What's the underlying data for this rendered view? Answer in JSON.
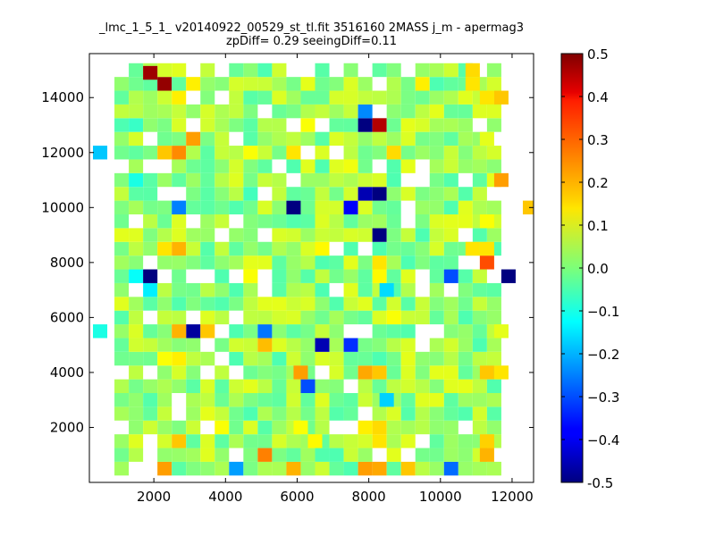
{
  "chart_data": {
    "type": "heatmap",
    "title": "_lmc_1_5_1_ v20140922_00529_st_tl.fit 3516160 2MASS j_m - apermag3",
    "subtitle": "zpDiff= 0.29 seeingDiff=0.11",
    "xlabel": "",
    "ylabel": "",
    "xlim": [
      200,
      12600
    ],
    "ylim": [
      0,
      15600
    ],
    "x_ticks": [
      2000,
      4000,
      6000,
      8000,
      10000,
      12000
    ],
    "y_ticks": [
      2000,
      4000,
      6000,
      8000,
      10000,
      12000,
      14000
    ],
    "colorbar": {
      "colormap": "jet",
      "range": [
        -0.5,
        0.5
      ],
      "ticks": [
        "-0.5",
        "−0.4",
        "−0.3",
        "−0.2",
        "−0.1",
        "0.0",
        "0.1",
        "0.2",
        "0.3",
        "0.4",
        "0.5"
      ]
    },
    "bin_size": [
      400,
      500
    ],
    "cells": [
      [
        2300,
        14500,
        0.48
      ],
      [
        1900,
        14900,
        0.47
      ],
      [
        8300,
        13000,
        0.45
      ],
      [
        7900,
        13000,
        -0.5
      ],
      [
        5900,
        10000,
        -0.5
      ],
      [
        7900,
        10500,
        -0.45
      ],
      [
        8300,
        10500,
        -0.5
      ],
      [
        8300,
        9000,
        -0.5
      ],
      [
        1900,
        7500,
        -0.5
      ],
      [
        11900,
        7500,
        -0.5
      ],
      [
        3100,
        5500,
        -0.47
      ],
      [
        6700,
        5000,
        -0.45
      ],
      [
        7500,
        10000,
        -0.38
      ],
      [
        7500,
        5000,
        -0.33
      ],
      [
        5100,
        5500,
        -0.26
      ],
      [
        6300,
        3500,
        -0.3
      ],
      [
        10300,
        500,
        -0.27
      ],
      [
        4300,
        500,
        -0.22
      ],
      [
        10300,
        7500,
        -0.3
      ],
      [
        2700,
        10000,
        -0.25
      ],
      [
        7900,
        13500,
        -0.24
      ],
      [
        1500,
        7500,
        -0.12
      ],
      [
        1900,
        7000,
        -0.14
      ],
      [
        8500,
        7000,
        -0.16
      ],
      [
        8500,
        3000,
        -0.17
      ],
      [
        500,
        12000,
        -0.18
      ],
      [
        500,
        5500,
        -0.1
      ],
      [
        1100,
        13000,
        -0.05
      ],
      [
        1500,
        13000,
        -0.07
      ],
      [
        1500,
        11000,
        -0.1
      ],
      [
        9900,
        14500,
        -0.05
      ],
      [
        8700,
        7500,
        -0.03
      ],
      [
        6700,
        7000,
        -0.05
      ],
      [
        4700,
        10500,
        -0.06
      ],
      [
        2300,
        500,
        0.22
      ],
      [
        2700,
        1500,
        0.18
      ],
      [
        3100,
        12500,
        0.22
      ],
      [
        2700,
        12000,
        0.24
      ],
      [
        2300,
        12000,
        0.18
      ],
      [
        2700,
        8500,
        0.2
      ],
      [
        2300,
        8500,
        0.15
      ],
      [
        11300,
        8000,
        0.3
      ],
      [
        11700,
        11000,
        0.22
      ],
      [
        12500,
        10000,
        0.18
      ],
      [
        10900,
        15000,
        0.16
      ],
      [
        11700,
        14000,
        0.18
      ],
      [
        11300,
        14000,
        0.15
      ],
      [
        10900,
        14500,
        0.15
      ],
      [
        9500,
        14500,
        0.14
      ],
      [
        2700,
        5500,
        0.2
      ],
      [
        3500,
        5500,
        0.18
      ],
      [
        5100,
        5000,
        0.19
      ],
      [
        6100,
        4000,
        0.22
      ],
      [
        7900,
        4000,
        0.21
      ],
      [
        8300,
        4000,
        0.18
      ],
      [
        5100,
        1000,
        0.25
      ],
      [
        5900,
        500,
        0.2
      ],
      [
        7900,
        500,
        0.22
      ],
      [
        8300,
        500,
        0.21
      ],
      [
        9100,
        500,
        0.18
      ],
      [
        11300,
        1000,
        0.2
      ],
      [
        11300,
        1500,
        0.17
      ],
      [
        11300,
        4000,
        0.18
      ],
      [
        11700,
        4000,
        0.15
      ],
      [
        10900,
        8500,
        0.15
      ],
      [
        11300,
        8500,
        0.15
      ],
      [
        8700,
        12000,
        0.16
      ],
      [
        2700,
        14000,
        0.14
      ],
      [
        4700,
        12000,
        0.12
      ],
      [
        5900,
        12000,
        0.15
      ],
      [
        6300,
        13000,
        0.12
      ],
      [
        6700,
        8500,
        0.13
      ],
      [
        8300,
        8000,
        0.15
      ],
      [
        8300,
        7500,
        0.13
      ],
      [
        8700,
        6000,
        0.12
      ],
      [
        4700,
        7500,
        0.12
      ],
      [
        3100,
        14500,
        0.14
      ],
      [
        9100,
        11500,
        0.1
      ],
      [
        7500,
        11500,
        0.11
      ],
      [
        5500,
        6500,
        0.1
      ],
      [
        6100,
        2000,
        0.12
      ],
      [
        6500,
        1500,
        0.13
      ],
      [
        7900,
        2000,
        0.14
      ],
      [
        8300,
        2000,
        0.16
      ],
      [
        8300,
        1500,
        0.15
      ],
      [
        2300,
        4500,
        0.12
      ],
      [
        2700,
        4500,
        0.14
      ],
      [
        3900,
        2000,
        0.12
      ],
      [
        3500,
        1500,
        0.09
      ],
      [
        9900,
        9500,
        0.09
      ],
      [
        10700,
        9500,
        0.1
      ],
      [
        11300,
        9500,
        0.12
      ],
      [
        10700,
        3500,
        0.1
      ],
      [
        9100,
        3500,
        0.08
      ],
      [
        5900,
        9000,
        0.08
      ],
      [
        7100,
        12500,
        0.09
      ],
      [
        9100,
        13000,
        0.1
      ],
      [
        10300,
        12000,
        0.07
      ],
      [
        11300,
        12500,
        0.1
      ],
      [
        6300,
        14500,
        0.1
      ],
      [
        5500,
        14000,
        0.09
      ],
      [
        3500,
        13000,
        0.08
      ],
      [
        11700,
        5500,
        0.1
      ]
    ],
    "cell_rule": [
      "bins with i in [0,31) and j in [0,31) are generated in-script with values in [-0.05,0.1] as a green/cyan background; the listed cells override that background"
    ]
  }
}
